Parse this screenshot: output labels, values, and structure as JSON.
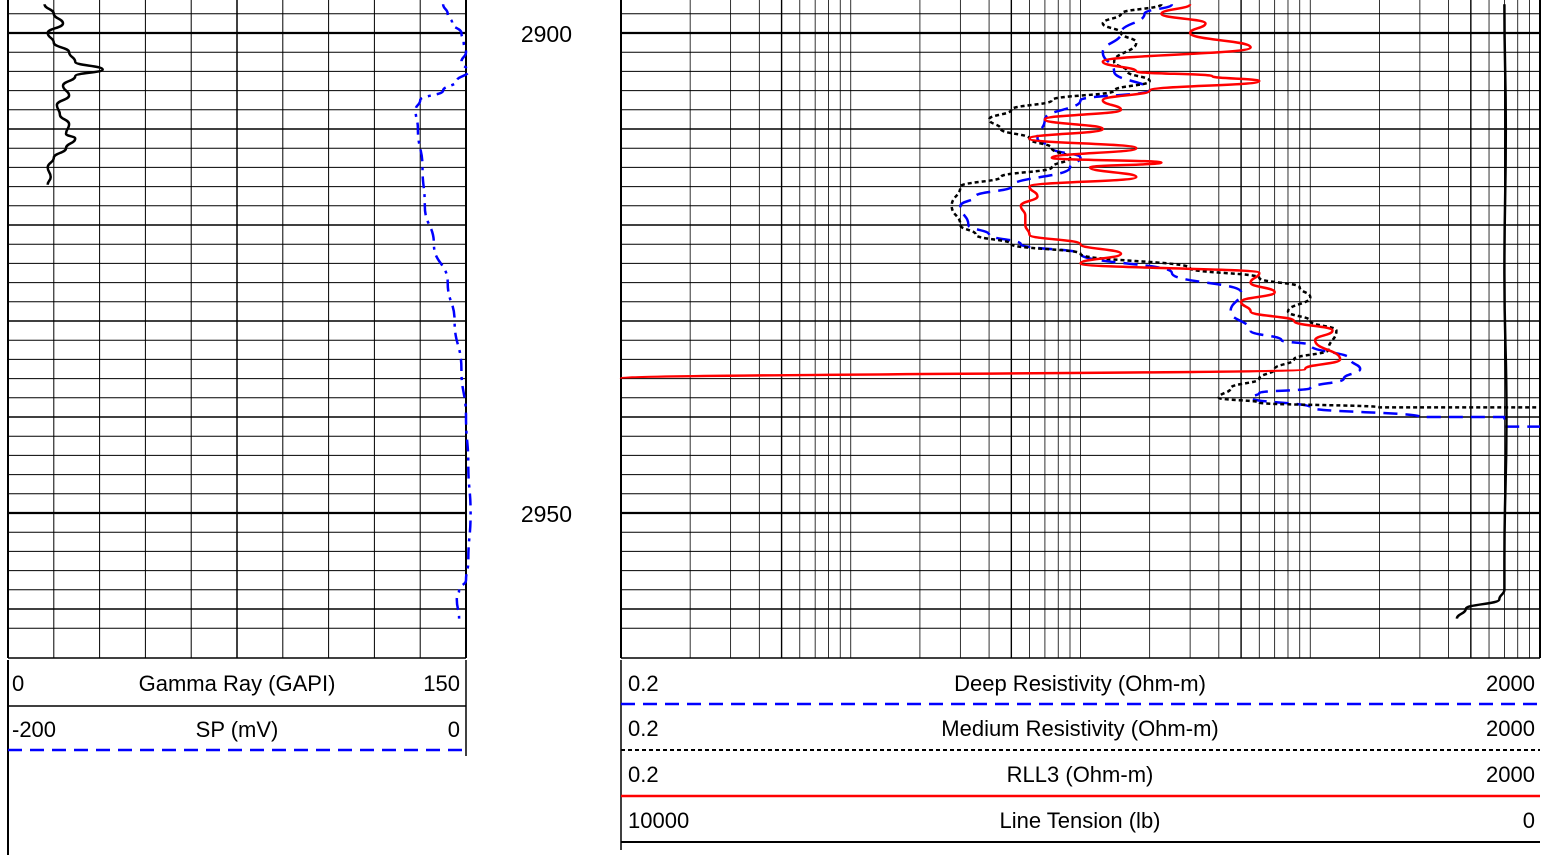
{
  "chart_data": {
    "type": "line",
    "depth_axis": {
      "range": [
        2897,
        2962
      ],
      "tick_labels": [
        "2900",
        "2950"
      ]
    },
    "track1": {
      "curves": [
        {
          "name": "Gamma Ray (GAPI)",
          "min": "0",
          "max": "150",
          "range": [
            0,
            150
          ],
          "color": "#000000",
          "style": "solid",
          "points": [
            [
              12,
              2897
            ],
            [
              15,
              2898
            ],
            [
              18,
              2899
            ],
            [
              13,
              2900
            ],
            [
              15,
              2901
            ],
            [
              20,
              2902
            ],
            [
              22,
              2903
            ],
            [
              31,
              2903.8
            ],
            [
              22,
              2904.5
            ],
            [
              18,
              2905.5
            ],
            [
              20,
              2906.5
            ],
            [
              16,
              2907.5
            ],
            [
              17,
              2908.5
            ],
            [
              20,
              2909.5
            ],
            [
              19,
              2910.5
            ],
            [
              22,
              2911
            ],
            [
              19,
              2912
            ],
            [
              15,
              2913
            ],
            [
              13,
              2914
            ],
            [
              14,
              2915
            ],
            [
              13,
              2915.8
            ]
          ]
        },
        {
          "name": "SP (mV)",
          "min": "-200",
          "max": "0",
          "range": [
            -200,
            0
          ],
          "color": "#0000ff",
          "style": "dashdot",
          "points": [
            [
              -10,
              2897
            ],
            [
              -8,
              2898
            ],
            [
              -6,
              2899
            ],
            [
              -2,
              2900
            ],
            [
              -1,
              2901
            ],
            [
              0,
              2902
            ],
            [
              -2,
              2903
            ],
            [
              1,
              2904
            ],
            [
              -4,
              2905
            ],
            [
              -10,
              2906
            ],
            [
              -20,
              2907
            ],
            [
              -22,
              2908
            ],
            [
              -21,
              2910
            ],
            [
              -19,
              2914
            ],
            [
              -18,
              2918
            ],
            [
              -14,
              2922
            ],
            [
              -8,
              2926
            ],
            [
              -5,
              2930
            ],
            [
              -2,
              2935
            ],
            [
              0,
              2940
            ],
            [
              1,
              2945
            ],
            [
              2,
              2950
            ],
            [
              1,
              2955
            ],
            [
              0,
              2957
            ],
            [
              -3,
              2958
            ],
            [
              -4,
              2959
            ],
            [
              -3,
              2961
            ]
          ]
        }
      ]
    },
    "track2": {
      "curves": [
        {
          "name": "Deep Resistivity (Ohm-m)",
          "min": "0.2",
          "max": "2000",
          "range": [
            0.2,
            2000
          ],
          "scale": "log",
          "color": "#0000ff",
          "style": "dashed",
          "points": [
            [
              50,
              2897
            ],
            [
              38,
              2898
            ],
            [
              30,
              2900
            ],
            [
              25,
              2902
            ],
            [
              28,
              2904
            ],
            [
              40,
              2906
            ],
            [
              20,
              2907
            ],
            [
              14,
              2909
            ],
            [
              13,
              2911
            ],
            [
              15,
              2912
            ],
            [
              20,
              2913
            ],
            [
              18,
              2914
            ],
            [
              10,
              2916
            ],
            [
              7,
              2917
            ],
            [
              6,
              2918
            ],
            [
              6.5,
              2920
            ],
            [
              8,
              2921
            ],
            [
              11,
              2922
            ],
            [
              20,
              2923
            ],
            [
              50,
              2925
            ],
            [
              100,
              2927
            ],
            [
              90,
              2929
            ],
            [
              110,
              2931
            ],
            [
              150,
              2932
            ],
            [
              200,
              2932.5
            ],
            [
              300,
              2934
            ],
            [
              330,
              2935
            ],
            [
              280,
              2936
            ],
            [
              200,
              2937
            ],
            [
              120,
              2937.5
            ],
            [
              110,
              2938
            ],
            [
              200,
              2939
            ],
            [
              600,
              2940
            ],
            [
              1400,
              2940
            ],
            [
              1400,
              2941
            ],
            [
              2000,
              2941
            ]
          ]
        },
        {
          "name": "Medium Resistivity (Ohm-m)",
          "min": "0.2",
          "max": "2000",
          "range": [
            0.2,
            2000
          ],
          "scale": "log",
          "color": "#000000",
          "style": "dotted",
          "points": [
            [
              45,
              2897
            ],
            [
              30,
              2898
            ],
            [
              25,
              2899
            ],
            [
              30,
              2900
            ],
            [
              35,
              2901
            ],
            [
              28,
              2903
            ],
            [
              32,
              2904
            ],
            [
              40,
              2905
            ],
            [
              28,
              2906
            ],
            [
              15,
              2907
            ],
            [
              10,
              2908
            ],
            [
              8,
              2909
            ],
            [
              9,
              2910
            ],
            [
              12,
              2911
            ],
            [
              15,
              2912
            ],
            [
              18,
              2913
            ],
            [
              15,
              2914
            ],
            [
              9,
              2915
            ],
            [
              6,
              2916
            ],
            [
              5.5,
              2918
            ],
            [
              6,
              2920
            ],
            [
              7,
              2921
            ],
            [
              10,
              2922
            ],
            [
              20,
              2923
            ],
            [
              60,
              2924.5
            ],
            [
              120,
              2925.5
            ],
            [
              180,
              2926.5
            ],
            [
              200,
              2927.5
            ],
            [
              160,
              2929
            ],
            [
              200,
              2930
            ],
            [
              260,
              2931
            ],
            [
              240,
              2933
            ],
            [
              170,
              2934
            ],
            [
              140,
              2935
            ],
            [
              120,
              2936
            ],
            [
              90,
              2937
            ],
            [
              80,
              2938
            ],
            [
              120,
              2938.5
            ],
            [
              400,
              2939
            ],
            [
              2000,
              2939
            ]
          ]
        },
        {
          "name": "RLL3 (Ohm-m)",
          "min": "0.2",
          "max": "2000",
          "range": [
            0.2,
            2000
          ],
          "scale": "log",
          "color": "#ff0000",
          "style": "solid",
          "points": [
            [
              60,
              2897
            ],
            [
              45,
              2898
            ],
            [
              70,
              2899
            ],
            [
              60,
              2900
            ],
            [
              110,
              2901.5
            ],
            [
              25,
              2903
            ],
            [
              35,
              2904
            ],
            [
              75,
              2904.5
            ],
            [
              120,
              2905
            ],
            [
              40,
              2906
            ],
            [
              25,
              2907
            ],
            [
              30,
              2908
            ],
            [
              14,
              2909
            ],
            [
              25,
              2910
            ],
            [
              12,
              2911
            ],
            [
              35,
              2912
            ],
            [
              15,
              2913
            ],
            [
              45,
              2913.5
            ],
            [
              22,
              2914
            ],
            [
              35,
              2915
            ],
            [
              12,
              2916
            ],
            [
              13,
              2917
            ],
            [
              11,
              2918
            ],
            [
              11.5,
              2919
            ],
            [
              11.5,
              2920
            ],
            [
              12,
              2921
            ],
            [
              20,
              2922
            ],
            [
              30,
              2923
            ],
            [
              20,
              2924
            ],
            [
              120,
              2925
            ],
            [
              110,
              2926
            ],
            [
              140,
              2927
            ],
            [
              100,
              2928
            ],
            [
              110,
              2929
            ],
            [
              170,
              2930
            ],
            [
              250,
              2931
            ],
            [
              210,
              2932
            ],
            [
              270,
              2934
            ],
            [
              190,
              2935
            ],
            [
              0.2,
              2936
            ]
          ]
        },
        {
          "name": "Line Tension (lb)",
          "min": "10000",
          "max": "0",
          "range": [
            10000,
            0
          ],
          "color": "#000000",
          "style": "solid",
          "points": [
            [
              1400,
              2897
            ],
            [
              1420,
              2910
            ],
            [
              1400,
              2925
            ],
            [
              1430,
              2940
            ],
            [
              1400,
              2955
            ],
            [
              1400,
              2958
            ],
            [
              1330,
              2959
            ],
            [
              950,
              2960
            ],
            [
              870,
              2961
            ]
          ]
        }
      ]
    }
  }
}
